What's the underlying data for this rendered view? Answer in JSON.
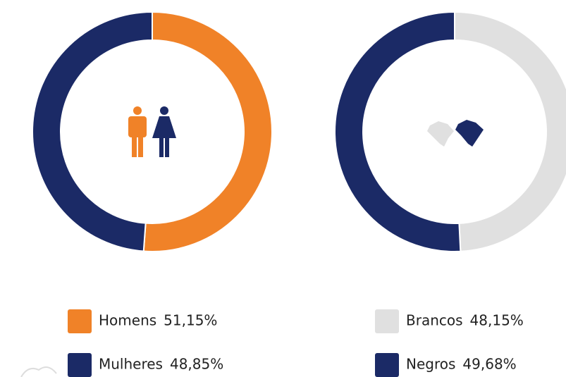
{
  "chart_data": [
    {
      "type": "donut",
      "categories": [
        "Homens",
        "Mulheres"
      ],
      "values": [
        51.15,
        48.85
      ],
      "value_labels": [
        "51,15%",
        "48,85%"
      ],
      "colors": [
        "#f08228",
        "#1b2a66"
      ]
    },
    {
      "type": "donut",
      "categories": [
        "Brancos",
        "Negros"
      ],
      "values": [
        48.15,
        49.68
      ],
      "value_labels": [
        "48,15%",
        "49,68%"
      ],
      "colors": [
        "#e0e0e0",
        "#1b2a66"
      ]
    }
  ]
}
